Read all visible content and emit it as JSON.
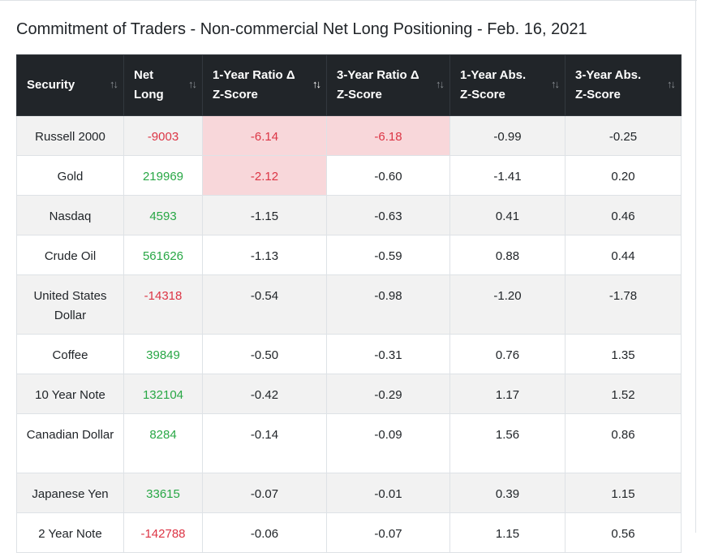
{
  "page": {
    "title": "Commitment of Traders - Non-commercial Net Long Positioning - Feb. 16, 2021"
  },
  "colors": {
    "header_bg": "#212529",
    "stripe": "#f2f2f2",
    "highlight": "#f8d7da",
    "negative": "#dc3545",
    "positive": "#28a745"
  },
  "table": {
    "headers": [
      {
        "line1": "Security",
        "line2": ""
      },
      {
        "line1": "Net",
        "line2": "Long"
      },
      {
        "line1": "1-Year Ratio Δ",
        "line2": "Z-Score"
      },
      {
        "line1": "3-Year Ratio Δ",
        "line2": "Z-Score"
      },
      {
        "line1": "1-Year Abs.",
        "line2": "Z-Score"
      },
      {
        "line1": "3-Year Abs.",
        "line2": "Z-Score"
      }
    ],
    "sort_icon": "↑↓",
    "active_sort_column": 2,
    "rows": [
      {
        "security": "Russell 2000",
        "net_long": "-9003",
        "r1": "-6.14",
        "r3": "-6.18",
        "a1": "-0.99",
        "a3": "-0.25",
        "hl_r1": true,
        "hl_r3": true
      },
      {
        "security": "Gold",
        "net_long": "219969",
        "r1": "-2.12",
        "r3": "-0.60",
        "a1": "-1.41",
        "a3": "0.20",
        "hl_r1": true,
        "hl_r3": false
      },
      {
        "security": "Nasdaq",
        "net_long": "4593",
        "r1": "-1.15",
        "r3": "-0.63",
        "a1": "0.41",
        "a3": "0.46",
        "hl_r1": false,
        "hl_r3": false
      },
      {
        "security": "Crude Oil",
        "net_long": "561626",
        "r1": "-1.13",
        "r3": "-0.59",
        "a1": "0.88",
        "a3": "0.44",
        "hl_r1": false,
        "hl_r3": false
      },
      {
        "security": "United States Dollar",
        "net_long": "-14318",
        "r1": "-0.54",
        "r3": "-0.98",
        "a1": "-1.20",
        "a3": "-1.78",
        "hl_r1": false,
        "hl_r3": false
      },
      {
        "security": "Coffee",
        "net_long": "39849",
        "r1": "-0.50",
        "r3": "-0.31",
        "a1": "0.76",
        "a3": "1.35",
        "hl_r1": false,
        "hl_r3": false
      },
      {
        "security": "10 Year Note",
        "net_long": "132104",
        "r1": "-0.42",
        "r3": "-0.29",
        "a1": "1.17",
        "a3": "1.52",
        "hl_r1": false,
        "hl_r3": false
      },
      {
        "security": "Canadian Dollar",
        "net_long": "8284",
        "r1": "-0.14",
        "r3": "-0.09",
        "a1": "1.56",
        "a3": "0.86",
        "hl_r1": false,
        "hl_r3": false
      },
      {
        "security": "Japanese Yen",
        "net_long": "33615",
        "r1": "-0.07",
        "r3": "-0.01",
        "a1": "0.39",
        "a3": "1.15",
        "hl_r1": false,
        "hl_r3": false
      },
      {
        "security": "2 Year Note",
        "net_long": "-142788",
        "r1": "-0.06",
        "r3": "-0.07",
        "a1": "1.15",
        "a3": "0.56",
        "hl_r1": false,
        "hl_r3": false
      }
    ]
  }
}
